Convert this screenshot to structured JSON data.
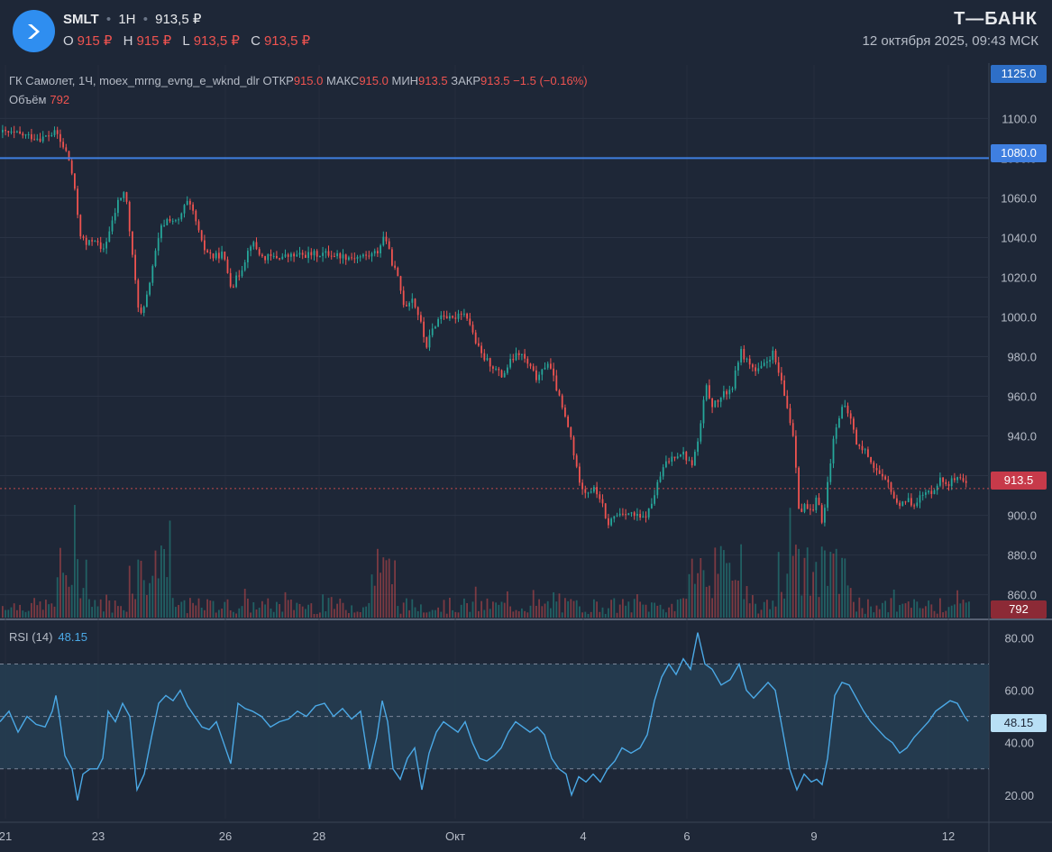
{
  "header": {
    "ticker": "SMLT",
    "interval": "1H",
    "last_price": "913,5 ₽",
    "ohlc": [
      {
        "key": "O",
        "value": "915 ₽"
      },
      {
        "key": "H",
        "value": "915 ₽"
      },
      {
        "key": "L",
        "value": "913,5 ₽"
      },
      {
        "key": "C",
        "value": "913,5 ₽"
      }
    ],
    "brand": "Т—БАНК",
    "datetime": "12 октября 2025, 09:43 МСК"
  },
  "legend": {
    "title": "ГК Самолет, 1Ч, moex_mrng_evng_e_wknd_dlr",
    "open_label": "ОТКР",
    "open_value": "915.0",
    "high_label": "МАКС",
    "high_value": "915.0",
    "low_label": "МИН",
    "low_value": "913.5",
    "close_label": "ЗАКР",
    "close_value": "913.5",
    "change": "−1.5 (−0.16%)",
    "volume_label": "Объём",
    "volume_value": "792"
  },
  "rsi_legend": {
    "label": "RSI (14)",
    "value": "48.15"
  },
  "badges": {
    "top": "1125.0",
    "level": "1080.0",
    "price": "913.5",
    "volume": "792",
    "rsi": "48.15"
  },
  "colors": {
    "background": "#1e2737",
    "grid": "#2a3344",
    "up": "#26a69a",
    "down": "#ef5350",
    "hline": "#3f7fe0",
    "rsi_line": "#4ba9e6",
    "rsi_band": "#263e52"
  },
  "chart_data": [
    {
      "type": "candlestick",
      "title": "ГК Самолет, 1Ч",
      "y_ticks": [
        860,
        880,
        900,
        920,
        940,
        960,
        980,
        1000,
        1020,
        1040,
        1060,
        1080,
        1100,
        1125
      ],
      "ylim": [
        848,
        1127
      ],
      "x_ticks": [
        "21",
        "23",
        "26",
        "28",
        "Окт",
        "4",
        "6",
        "9",
        "12"
      ],
      "horizontal_level": 1080,
      "last_price": 913.5,
      "path": [
        [
          0,
          1093
        ],
        [
          20,
          1092
        ],
        [
          45,
          1090
        ],
        [
          62,
          1093
        ],
        [
          66,
          1088
        ],
        [
          74,
          1082
        ],
        [
          80,
          1070
        ],
        [
          88,
          1042
        ],
        [
          95,
          1036
        ],
        [
          104,
          1040
        ],
        [
          112,
          1032
        ],
        [
          122,
          1045
        ],
        [
          130,
          1058
        ],
        [
          138,
          1064
        ],
        [
          146,
          1030
        ],
        [
          154,
          1000
        ],
        [
          160,
          1005
        ],
        [
          168,
          1025
        ],
        [
          178,
          1045
        ],
        [
          186,
          1050
        ],
        [
          196,
          1047
        ],
        [
          206,
          1058
        ],
        [
          214,
          1052
        ],
        [
          224,
          1035
        ],
        [
          236,
          1030
        ],
        [
          246,
          1032
        ],
        [
          256,
          1015
        ],
        [
          266,
          1023
        ],
        [
          278,
          1038
        ],
        [
          290,
          1030
        ],
        [
          305,
          1030
        ],
        [
          330,
          1031
        ],
        [
          360,
          1032
        ],
        [
          390,
          1030
        ],
        [
          410,
          1031
        ],
        [
          418,
          1033
        ],
        [
          426,
          1042
        ],
        [
          432,
          1030
        ],
        [
          440,
          1020
        ],
        [
          448,
          1005
        ],
        [
          456,
          1010
        ],
        [
          464,
          1000
        ],
        [
          472,
          985
        ],
        [
          480,
          995
        ],
        [
          490,
          1002
        ],
        [
          500,
          998
        ],
        [
          510,
          1003
        ],
        [
          518,
          1000
        ],
        [
          526,
          988
        ],
        [
          534,
          980
        ],
        [
          544,
          976
        ],
        [
          556,
          970
        ],
        [
          566,
          978
        ],
        [
          576,
          982
        ],
        [
          586,
          975
        ],
        [
          596,
          968
        ],
        [
          606,
          978
        ],
        [
          614,
          968
        ],
        [
          622,
          955
        ],
        [
          632,
          940
        ],
        [
          640,
          920
        ],
        [
          648,
          912
        ],
        [
          658,
          913
        ],
        [
          666,
          908
        ],
        [
          672,
          895
        ],
        [
          682,
          900
        ],
        [
          692,
          902
        ],
        [
          702,
          900
        ],
        [
          712,
          898
        ],
        [
          720,
          903
        ],
        [
          728,
          915
        ],
        [
          736,
          925
        ],
        [
          746,
          930
        ],
        [
          756,
          932
        ],
        [
          766,
          925
        ],
        [
          774,
          938
        ],
        [
          782,
          965
        ],
        [
          790,
          955
        ],
        [
          800,
          960
        ],
        [
          812,
          965
        ],
        [
          820,
          983
        ],
        [
          828,
          978
        ],
        [
          838,
          972
        ],
        [
          848,
          976
        ],
        [
          856,
          982
        ],
        [
          864,
          970
        ],
        [
          872,
          955
        ],
        [
          880,
          938
        ],
        [
          886,
          900
        ],
        [
          892,
          905
        ],
        [
          900,
          900
        ],
        [
          906,
          910
        ],
        [
          912,
          895
        ],
        [
          918,
          920
        ],
        [
          926,
          945
        ],
        [
          934,
          955
        ],
        [
          942,
          950
        ],
        [
          950,
          935
        ],
        [
          960,
          932
        ],
        [
          968,
          925
        ],
        [
          978,
          918
        ],
        [
          986,
          915
        ],
        [
          994,
          905
        ],
        [
          1002,
          908
        ],
        [
          1012,
          906
        ],
        [
          1022,
          910
        ],
        [
          1032,
          912
        ],
        [
          1042,
          918
        ],
        [
          1050,
          916
        ],
        [
          1058,
          918
        ],
        [
          1066,
          917
        ],
        [
          1074,
          913.5
        ]
      ]
    },
    {
      "type": "bar",
      "title": "Объём",
      "last_value": 792
    },
    {
      "type": "line",
      "title": "RSI (14)",
      "y_ticks": [
        20,
        40,
        60,
        80
      ],
      "ylim": [
        11,
        86
      ],
      "bands": [
        30,
        50,
        70
      ],
      "last_value": 48.15,
      "path": [
        [
          0,
          48
        ],
        [
          10,
          52
        ],
        [
          20,
          44
        ],
        [
          30,
          50
        ],
        [
          40,
          47
        ],
        [
          50,
          46
        ],
        [
          58,
          52
        ],
        [
          62,
          58
        ],
        [
          66,
          50
        ],
        [
          72,
          35
        ],
        [
          80,
          30
        ],
        [
          86,
          18
        ],
        [
          92,
          28
        ],
        [
          100,
          30
        ],
        [
          108,
          30
        ],
        [
          114,
          34
        ],
        [
          120,
          52
        ],
        [
          128,
          48
        ],
        [
          136,
          55
        ],
        [
          144,
          50
        ],
        [
          152,
          22
        ],
        [
          160,
          28
        ],
        [
          168,
          42
        ],
        [
          176,
          55
        ],
        [
          184,
          58
        ],
        [
          192,
          56
        ],
        [
          200,
          60
        ],
        [
          208,
          54
        ],
        [
          216,
          50
        ],
        [
          224,
          46
        ],
        [
          232,
          45
        ],
        [
          240,
          48
        ],
        [
          248,
          40
        ],
        [
          256,
          32
        ],
        [
          264,
          55
        ],
        [
          272,
          53
        ],
        [
          280,
          52
        ],
        [
          290,
          50
        ],
        [
          300,
          46
        ],
        [
          310,
          48
        ],
        [
          320,
          49
        ],
        [
          330,
          52
        ],
        [
          340,
          50
        ],
        [
          350,
          54
        ],
        [
          360,
          55
        ],
        [
          370,
          50
        ],
        [
          380,
          53
        ],
        [
          390,
          49
        ],
        [
          400,
          52
        ],
        [
          410,
          30
        ],
        [
          418,
          42
        ],
        [
          424,
          56
        ],
        [
          430,
          48
        ],
        [
          436,
          30
        ],
        [
          444,
          26
        ],
        [
          452,
          34
        ],
        [
          460,
          38
        ],
        [
          468,
          22
        ],
        [
          476,
          36
        ],
        [
          484,
          44
        ],
        [
          492,
          48
        ],
        [
          500,
          46
        ],
        [
          508,
          44
        ],
        [
          516,
          48
        ],
        [
          524,
          40
        ],
        [
          532,
          34
        ],
        [
          540,
          33
        ],
        [
          548,
          35
        ],
        [
          556,
          38
        ],
        [
          564,
          44
        ],
        [
          572,
          48
        ],
        [
          580,
          46
        ],
        [
          588,
          44
        ],
        [
          596,
          46
        ],
        [
          604,
          43
        ],
        [
          612,
          34
        ],
        [
          620,
          30
        ],
        [
          628,
          28
        ],
        [
          634,
          20
        ],
        [
          642,
          27
        ],
        [
          650,
          25
        ],
        [
          658,
          28
        ],
        [
          666,
          25
        ],
        [
          674,
          30
        ],
        [
          682,
          33
        ],
        [
          690,
          38
        ],
        [
          700,
          36
        ],
        [
          710,
          38
        ],
        [
          718,
          43
        ],
        [
          726,
          56
        ],
        [
          734,
          65
        ],
        [
          742,
          70
        ],
        [
          750,
          66
        ],
        [
          758,
          72
        ],
        [
          766,
          68
        ],
        [
          774,
          82
        ],
        [
          782,
          70
        ],
        [
          790,
          68
        ],
        [
          800,
          62
        ],
        [
          810,
          64
        ],
        [
          820,
          70
        ],
        [
          828,
          60
        ],
        [
          836,
          57
        ],
        [
          844,
          60
        ],
        [
          852,
          63
        ],
        [
          860,
          60
        ],
        [
          868,
          45
        ],
        [
          876,
          30
        ],
        [
          884,
          22
        ],
        [
          892,
          28
        ],
        [
          900,
          25
        ],
        [
          906,
          26
        ],
        [
          912,
          24
        ],
        [
          918,
          34
        ],
        [
          926,
          58
        ],
        [
          934,
          63
        ],
        [
          942,
          62
        ],
        [
          950,
          57
        ],
        [
          958,
          52
        ],
        [
          966,
          48
        ],
        [
          974,
          45
        ],
        [
          982,
          42
        ],
        [
          990,
          40
        ],
        [
          998,
          36
        ],
        [
          1006,
          38
        ],
        [
          1014,
          42
        ],
        [
          1022,
          45
        ],
        [
          1030,
          48
        ],
        [
          1038,
          52
        ],
        [
          1046,
          54
        ],
        [
          1054,
          56
        ],
        [
          1062,
          55
        ],
        [
          1070,
          50
        ],
        [
          1074,
          48.15
        ]
      ]
    }
  ]
}
